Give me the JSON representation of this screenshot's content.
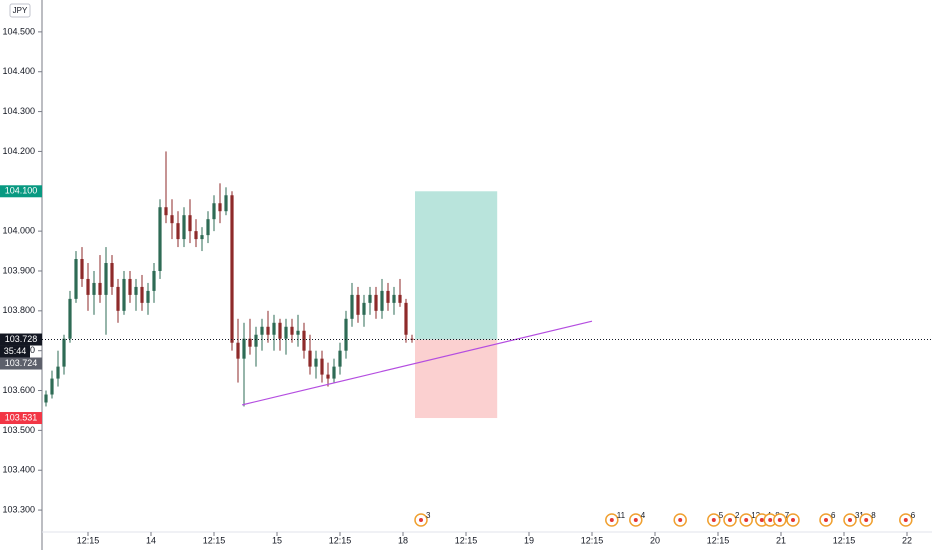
{
  "chart_data": {
    "type": "candlestick",
    "currency": "JPY",
    "xlim": [
      -0.667,
      147.667
    ],
    "ylim": [
      103.245,
      104.58
    ],
    "xticks": [
      {
        "value": 7,
        "label": "12:15"
      },
      {
        "value": 17.5,
        "label": "14"
      },
      {
        "value": 28,
        "label": "12:15"
      },
      {
        "value": 38.5,
        "label": "15"
      },
      {
        "value": 49,
        "label": "12:15"
      },
      {
        "value": 59.5,
        "label": "18"
      },
      {
        "value": 70,
        "label": "12:15"
      },
      {
        "value": 80.5,
        "label": "19"
      },
      {
        "value": 91,
        "label": "12:15"
      },
      {
        "value": 101.5,
        "label": "20"
      },
      {
        "value": 112,
        "label": "12:15"
      },
      {
        "value": 122.5,
        "label": "21"
      },
      {
        "value": 133,
        "label": "12:15"
      },
      {
        "value": 143.5,
        "label": "22"
      }
    ],
    "yticks": [
      {
        "value": 104.5,
        "label": "104.500"
      },
      {
        "value": 104.4,
        "label": "104.400"
      },
      {
        "value": 104.3,
        "label": "104.300"
      },
      {
        "value": 104.2,
        "label": "104.200"
      },
      {
        "value": 104.0,
        "label": "104.000"
      },
      {
        "value": 103.9,
        "label": "103.900"
      },
      {
        "value": 103.8,
        "label": "103.800"
      },
      {
        "value": 103.7,
        "label": "103.700"
      },
      {
        "value": 103.6,
        "label": "103.600"
      },
      {
        "value": 103.5,
        "label": "103.500"
      },
      {
        "value": 103.4,
        "label": "103.400"
      },
      {
        "value": 103.3,
        "label": "103.300"
      }
    ],
    "up_color": "#2e6b55",
    "down_color": "#8e2a2a",
    "x": [
      0,
      1,
      2,
      3,
      4,
      5,
      6,
      7,
      8,
      9,
      10,
      11,
      12,
      13,
      14,
      15,
      16,
      17,
      18,
      19,
      20,
      21,
      22,
      23,
      24,
      25,
      26,
      27,
      28,
      29,
      30,
      31,
      32,
      33,
      34,
      35,
      36,
      37,
      38,
      39,
      40,
      41,
      42,
      43,
      44,
      45,
      46,
      47,
      48,
      49,
      50,
      51,
      52,
      53,
      54,
      55,
      56,
      57,
      58,
      59,
      60,
      61
    ],
    "open": [
      103.57,
      103.59,
      103.63,
      103.66,
      103.73,
      103.83,
      103.93,
      103.88,
      103.84,
      103.87,
      103.84,
      103.92,
      103.86,
      103.8,
      103.88,
      103.84,
      103.86,
      103.82,
      103.85,
      103.9,
      104.06,
      104.04,
      104.02,
      103.98,
      104.04,
      104.0,
      103.98,
      103.99,
      104.03,
      104.07,
      104.05,
      104.09,
      103.72,
      103.68,
      103.73,
      103.71,
      103.74,
      103.76,
      103.74,
      103.77,
      103.73,
      103.76,
      103.74,
      103.75,
      103.7,
      103.66,
      103.68,
      103.64,
      103.63,
      103.66,
      103.7,
      103.78,
      103.84,
      103.79,
      103.82,
      103.84,
      103.8,
      103.85,
      103.82,
      103.84,
      103.82,
      103.73
    ],
    "high": [
      103.6,
      103.65,
      103.7,
      103.74,
      103.85,
      103.95,
      103.96,
      103.92,
      103.9,
      103.94,
      103.96,
      103.94,
      103.88,
      103.9,
      103.9,
      103.88,
      103.89,
      103.87,
      103.92,
      104.08,
      104.2,
      104.08,
      104.05,
      104.06,
      104.08,
      104.03,
      104.01,
      104.05,
      104.09,
      104.12,
      104.11,
      104.1,
      103.78,
      103.77,
      103.78,
      103.76,
      103.78,
      103.8,
      103.79,
      103.78,
      103.78,
      103.78,
      103.79,
      103.77,
      103.74,
      103.7,
      103.7,
      103.67,
      103.68,
      103.72,
      103.8,
      103.87,
      103.86,
      103.84,
      103.86,
      103.86,
      103.88,
      103.87,
      103.86,
      103.88,
      103.83,
      103.74
    ],
    "low": [
      103.56,
      103.58,
      103.61,
      103.64,
      103.72,
      103.82,
      103.86,
      103.8,
      103.79,
      103.82,
      103.74,
      103.84,
      103.77,
      103.79,
      103.82,
      103.8,
      103.8,
      103.79,
      103.82,
      103.88,
      104.02,
      103.98,
      103.96,
      103.96,
      103.97,
      103.96,
      103.95,
      103.97,
      104.0,
      104.02,
      104.04,
      103.7,
      103.62,
      103.56,
      103.69,
      103.66,
      103.7,
      103.72,
      103.7,
      103.7,
      103.69,
      103.72,
      103.71,
      103.68,
      103.64,
      103.63,
      103.62,
      103.61,
      103.62,
      103.64,
      103.68,
      103.76,
      103.77,
      103.76,
      103.79,
      103.78,
      103.78,
      103.8,
      103.79,
      103.81,
      103.72,
      103.72
    ],
    "close": [
      103.59,
      103.63,
      103.66,
      103.73,
      103.83,
      103.93,
      103.88,
      103.84,
      103.87,
      103.84,
      103.92,
      103.86,
      103.8,
      103.88,
      103.84,
      103.86,
      103.82,
      103.85,
      103.9,
      104.06,
      104.04,
      104.02,
      103.98,
      104.04,
      104.0,
      103.98,
      103.99,
      104.03,
      104.07,
      104.05,
      104.09,
      103.72,
      103.68,
      103.73,
      103.71,
      103.74,
      103.76,
      103.74,
      103.77,
      103.73,
      103.76,
      103.74,
      103.75,
      103.7,
      103.66,
      103.68,
      103.64,
      103.63,
      103.66,
      103.7,
      103.78,
      103.84,
      103.79,
      103.82,
      103.84,
      103.8,
      103.85,
      103.82,
      103.84,
      103.82,
      103.74,
      103.728
    ],
    "position": {
      "x_start": 61.5,
      "x_end": 75.2,
      "entry": 103.728,
      "target": 104.1,
      "stop": 103.531,
      "profit_color": "#b9e4dc",
      "loss_color": "#fbd0d0"
    },
    "trendline": {
      "x": [
        32.7,
        91
      ],
      "y": [
        103.564,
        103.774
      ],
      "color": "#b44de0"
    },
    "price_tags": [
      {
        "value": 104.1,
        "label": "104.100",
        "color": "#089981"
      },
      {
        "value": 103.728,
        "label": "103.728",
        "color": "#131722"
      },
      {
        "value": 103.724,
        "label": "103.724",
        "color": "#5d606b"
      },
      {
        "value": 103.531,
        "label": "103.531",
        "color": "#f23645"
      }
    ],
    "countdown": "35:44",
    "events": [
      {
        "x": 62.5,
        "label": "3"
      },
      {
        "x": 94.3,
        "label": "11"
      },
      {
        "x": 98.3,
        "label": "4"
      },
      {
        "x": 105.7,
        "label": null
      },
      {
        "x": 111.3,
        "label": "5"
      },
      {
        "x": 114,
        "label": "2"
      },
      {
        "x": 116.7,
        "label": "12"
      },
      {
        "x": 119.3,
        "label": "4"
      },
      {
        "x": 120.7,
        "label": "8"
      },
      {
        "x": 122.3,
        "label": "7"
      },
      {
        "x": 124.5,
        "label": null
      },
      {
        "x": 130,
        "label": "6"
      },
      {
        "x": 134,
        "label": "31"
      },
      {
        "x": 136.7,
        "label": "8"
      },
      {
        "x": 143.3,
        "label": "6"
      }
    ]
  }
}
